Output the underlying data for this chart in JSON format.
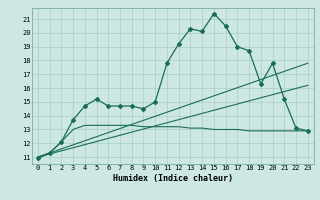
{
  "xlabel": "Humidex (Indice chaleur)",
  "bg_color": "#cde8e2",
  "grid_color": "#a8cdc6",
  "line_color": "#1a6b5e",
  "spine_color": "#7aada4",
  "xlim": [
    -0.5,
    23.5
  ],
  "ylim": [
    10.5,
    21.8
  ],
  "xticks": [
    0,
    1,
    2,
    3,
    4,
    5,
    6,
    7,
    8,
    9,
    10,
    11,
    12,
    13,
    14,
    15,
    16,
    17,
    18,
    19,
    20,
    21,
    22,
    23
  ],
  "yticks": [
    11,
    12,
    13,
    14,
    15,
    16,
    17,
    18,
    19,
    20,
    21
  ],
  "series1_x": [
    0,
    1,
    2,
    3,
    4,
    5,
    6,
    7,
    8,
    9,
    10,
    11,
    12,
    13,
    14,
    15,
    16,
    17,
    18,
    19,
    20,
    21,
    22,
    23
  ],
  "series1_y": [
    10.9,
    11.3,
    12.1,
    13.7,
    14.7,
    15.2,
    14.7,
    14.7,
    14.7,
    14.5,
    15.0,
    17.8,
    19.2,
    20.3,
    20.1,
    21.4,
    20.5,
    19.0,
    18.7,
    16.3,
    17.8,
    15.2,
    13.1,
    12.9
  ],
  "series2_x": [
    0,
    23
  ],
  "series2_y": [
    11.0,
    17.8
  ],
  "series3_x": [
    0,
    23
  ],
  "series3_y": [
    11.0,
    16.2
  ],
  "series4_x": [
    0,
    1,
    2,
    3,
    4,
    5,
    6,
    7,
    8,
    9,
    10,
    11,
    12,
    13,
    14,
    15,
    16,
    17,
    18,
    19,
    20,
    21,
    22,
    23
  ],
  "series4_y": [
    11.0,
    11.3,
    12.1,
    13.0,
    13.3,
    13.3,
    13.3,
    13.3,
    13.3,
    13.2,
    13.2,
    13.2,
    13.2,
    13.1,
    13.1,
    13.0,
    13.0,
    13.0,
    12.9,
    12.9,
    12.9,
    12.9,
    12.9,
    12.9
  ]
}
